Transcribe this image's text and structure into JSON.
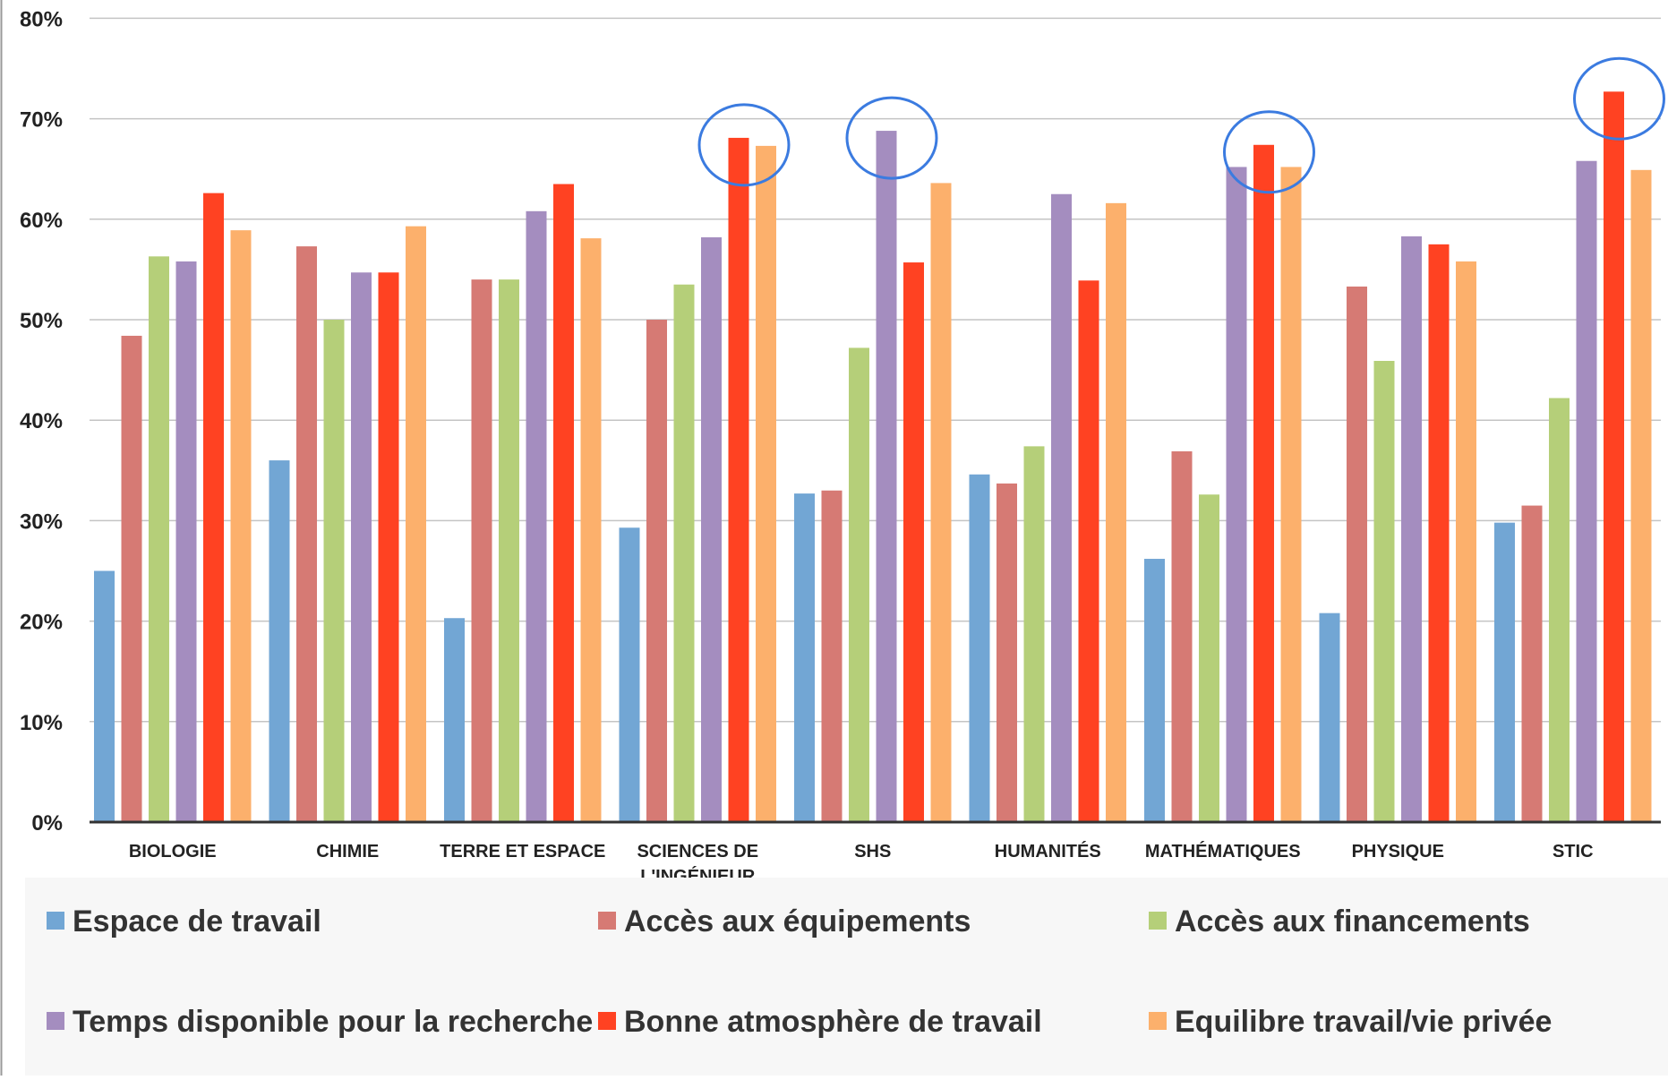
{
  "chart_data": {
    "type": "bar",
    "title": "",
    "xlabel": "",
    "ylabel": "",
    "ylim": [
      0,
      80
    ],
    "y_ticks": [
      "0%",
      "10%",
      "20%",
      "30%",
      "40%",
      "50%",
      "60%",
      "70%",
      "80%"
    ],
    "grid": true,
    "legend_position": "bottom",
    "categories": [
      [
        "BIOLOGIE"
      ],
      [
        "CHIMIE"
      ],
      [
        "TERRE ET ESPACE"
      ],
      [
        "SCIENCES DE",
        "L'INGÉNIEUR"
      ],
      [
        "SHS"
      ],
      [
        "HUMANITÉS"
      ],
      [
        "MATHÉMATIQUES"
      ],
      [
        "PHYSIQUE"
      ],
      [
        "STIC"
      ]
    ],
    "series": [
      {
        "name": "Espace de travail",
        "color": "#72a6d4",
        "values": [
          25,
          36,
          20.3,
          29.3,
          32.7,
          34.6,
          26.2,
          20.8,
          29.8
        ]
      },
      {
        "name": "Accès aux équipements",
        "color": "#d67a74",
        "values": [
          48.4,
          57.3,
          54,
          50,
          33,
          33.7,
          36.9,
          53.3,
          31.5
        ]
      },
      {
        "name": "Accès aux financements",
        "color": "#b5cf79",
        "values": [
          56.3,
          50,
          54,
          53.5,
          47.2,
          37.4,
          32.6,
          45.9,
          42.2
        ]
      },
      {
        "name": "Temps disponible pour la recherche",
        "color": "#a48dbf",
        "values": [
          55.8,
          54.7,
          60.8,
          58.2,
          68.8,
          62.5,
          65.2,
          58.3,
          65.8
        ]
      },
      {
        "name": "Bonne atmosphère de travail",
        "color": "#ff4222",
        "values": [
          62.6,
          54.7,
          63.5,
          68.1,
          55.7,
          53.9,
          67.4,
          57.5,
          72.7
        ]
      },
      {
        "name": "Equilibre travail/vie privée",
        "color": "#fcb06c",
        "values": [
          58.9,
          59.3,
          58.1,
          67.3,
          63.6,
          61.6,
          65.2,
          55.8,
          64.9
        ]
      }
    ],
    "highlighted": [
      {
        "category": "SCIENCES DE L'INGÉNIEUR",
        "series": "Bonne atmosphère de travail"
      },
      {
        "category": "SHS",
        "series": "Temps disponible pour la recherche"
      },
      {
        "category": "MATHÉMATIQUES",
        "series": "Bonne atmosphère de travail"
      },
      {
        "category": "STIC",
        "series": "Bonne atmosphère de travail"
      }
    ],
    "highlight_color": "#3b7be0"
  }
}
